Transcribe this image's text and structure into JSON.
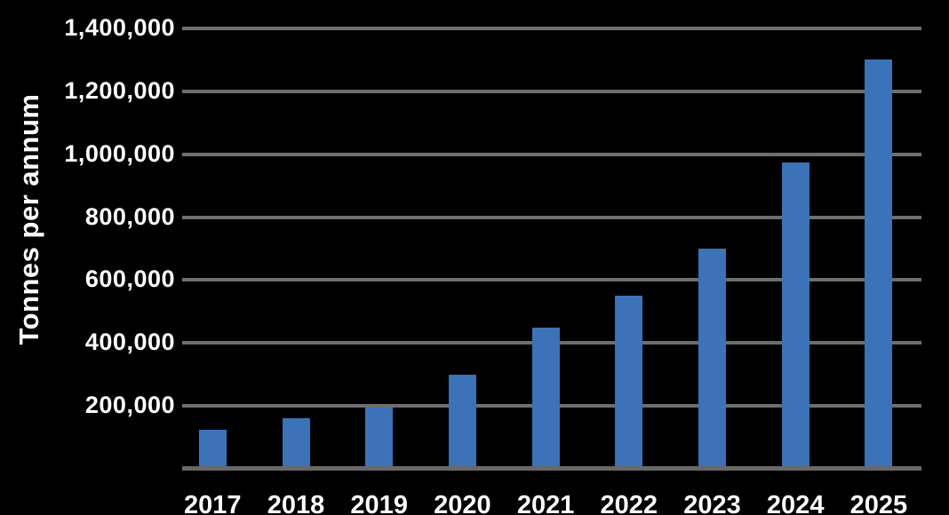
{
  "chart_data": {
    "type": "bar",
    "title": "",
    "xlabel": "",
    "ylabel": "Tonnes per annum",
    "categories": [
      "2017",
      "2018",
      "2019",
      "2020",
      "2021",
      "2022",
      "2023",
      "2024",
      "2025"
    ],
    "values": [
      125000,
      160000,
      195000,
      300000,
      450000,
      550000,
      700000,
      975000,
      1300000
    ],
    "ylim": [
      0,
      1400000
    ],
    "yticks": [
      200000,
      400000,
      600000,
      800000,
      1000000,
      1200000,
      1400000
    ],
    "ytick_labels": [
      "200,000",
      "400,000",
      "600,000",
      "800,000",
      "1,000,000",
      "1,200,000",
      "1,400,000"
    ],
    "grid": true,
    "legend": false,
    "colors": {
      "background": "#000000",
      "bar": "#3b72b8",
      "gridline": "#6e6e6e",
      "axis_line": "#686868",
      "text": "#ffffff"
    }
  }
}
